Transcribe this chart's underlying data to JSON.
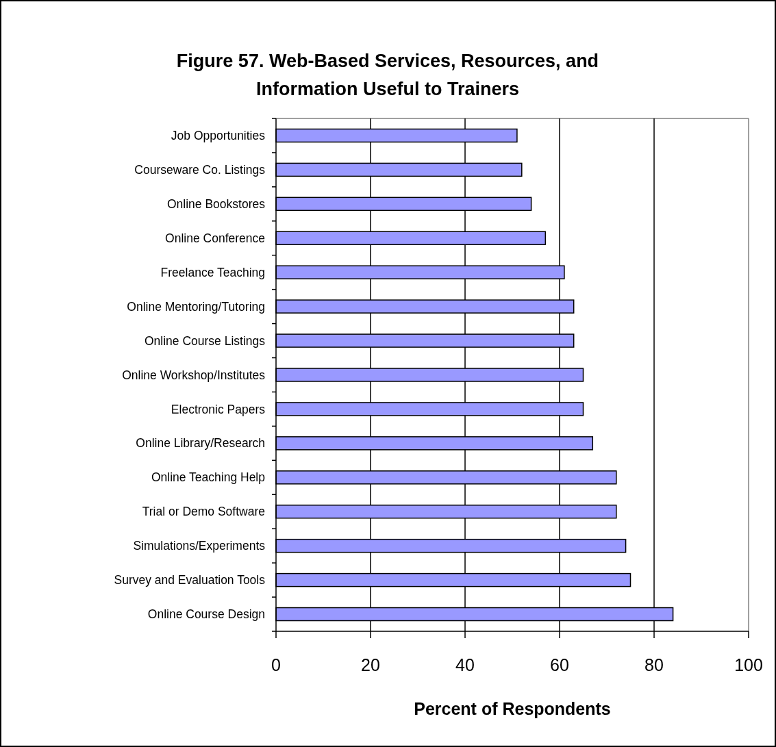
{
  "chart_data": {
    "type": "bar",
    "orientation": "horizontal",
    "title": "Figure 57. Web-Based Services, Resources, and Information Useful to Trainers",
    "xlabel": "Percent of Respondents",
    "categories": [
      "Job Opportunities",
      "Courseware Co. Listings",
      "Online Bookstores",
      "Online Conference",
      "Freelance Teaching",
      "Online Mentoring/Tutoring",
      "Online Course Listings",
      "Online Workshop/Institutes",
      "Electronic Papers",
      "Online Library/Research",
      "Online Teaching Help",
      "Trial or Demo Software",
      "Simulations/Experiments",
      "Survey and Evaluation Tools",
      "Online Course Design"
    ],
    "values": [
      51,
      52,
      54,
      57,
      61,
      63,
      63,
      65,
      65,
      67,
      72,
      72,
      74,
      75,
      84
    ],
    "color": "#9999ff",
    "xlim": [
      0,
      100
    ],
    "xticks": [
      0,
      20,
      40,
      60,
      80,
      100
    ],
    "grid": "x"
  }
}
